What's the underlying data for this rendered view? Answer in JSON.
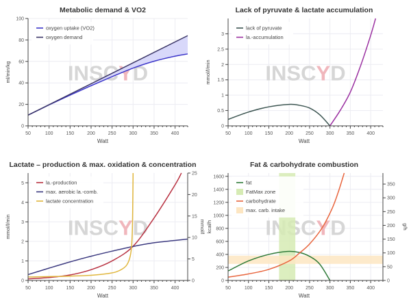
{
  "watermark": {
    "pre": "INSC",
    "y": "Y",
    "post": "D"
  },
  "chart_data": [
    {
      "type": "line",
      "title": "Metabolic demand & VO2",
      "xlabel": "Watt",
      "ylabel": "ml/min/kg",
      "xlim": [
        50,
        430
      ],
      "ylim": [
        0,
        100
      ],
      "xticks": [
        50,
        100,
        150,
        200,
        250,
        300,
        350,
        400
      ],
      "yticks": [
        0,
        20,
        40,
        60,
        80,
        100
      ],
      "legend_position": "top-left",
      "fill_between": {
        "series": [
          0,
          1
        ],
        "color": "#d8d8fa"
      },
      "series": [
        {
          "name": "oxygen uptake (VO2)",
          "color": "#3b35c9",
          "x": [
            50,
            100,
            150,
            200,
            250,
            300,
            350,
            400,
            430
          ],
          "y": [
            10,
            19.5,
            28.6,
            37.4,
            45.8,
            53.8,
            60.2,
            64.9,
            67
          ]
        },
        {
          "name": "oxygen demand",
          "color": "#3a3566",
          "x": [
            50,
            430
          ],
          "y": [
            10,
            84
          ]
        }
      ]
    },
    {
      "type": "line",
      "title": "Lack of pyruvate & lactate accumulation",
      "xlabel": "Watt",
      "ylabel": "mmol/l/min",
      "xlim": [
        50,
        430
      ],
      "ylim": [
        0,
        3.5
      ],
      "xticks": [
        50,
        100,
        150,
        200,
        250,
        300,
        350,
        400
      ],
      "yticks": [
        0,
        0.5,
        1,
        1.5,
        2,
        2.5,
        3
      ],
      "legend_position": "top-left",
      "series": [
        {
          "name": "lack of pyruvate",
          "color": "#3b5450",
          "x": [
            50,
            100,
            150,
            200,
            225,
            250,
            275,
            300
          ],
          "y": [
            0.21,
            0.45,
            0.62,
            0.7,
            0.67,
            0.58,
            0.36,
            0
          ]
        },
        {
          "name": "la.-accumulation",
          "color": "#9a2fa0",
          "x": [
            300,
            325,
            350,
            375,
            400,
            412
          ],
          "y": [
            0,
            0.5,
            1.1,
            1.95,
            2.95,
            3.5
          ]
        }
      ]
    },
    {
      "type": "line",
      "title": "Lactate – production & max. oxidation & concentration",
      "xlabel": "Watt",
      "ylabel": "mmol/l/min",
      "y2label": "mmol/l",
      "xlim": [
        50,
        430
      ],
      "ylim": [
        0,
        5.5
      ],
      "y2lim": [
        0,
        25
      ],
      "xticks": [
        50,
        100,
        150,
        200,
        250,
        300,
        350,
        400
      ],
      "yticks": [
        0,
        1,
        2,
        3,
        4,
        5
      ],
      "y2ticks": [
        0,
        5,
        10,
        15,
        20,
        25
      ],
      "legend_position": "top-left",
      "series": [
        {
          "name": "la.-production",
          "color": "#b83040",
          "x": [
            50,
            100,
            150,
            200,
            250,
            300,
            350,
            400,
            415
          ],
          "y": [
            0.08,
            0.15,
            0.28,
            0.55,
            1.0,
            1.75,
            3.2,
            4.9,
            5.5
          ]
        },
        {
          "name": "max. aerobic la.-comb.",
          "color": "#3c3a80",
          "x": [
            50,
            100,
            150,
            200,
            250,
            300,
            350,
            400,
            430
          ],
          "y": [
            0.3,
            0.63,
            0.95,
            1.24,
            1.5,
            1.74,
            1.93,
            2.05,
            2.12
          ]
        },
        {
          "name": "lactate concentration",
          "color": "#e0b63c",
          "axis": "right",
          "x": [
            50,
            100,
            150,
            200,
            240,
            260,
            275,
            285,
            292,
            296,
            298,
            299,
            300
          ],
          "y": [
            0.8,
            0.9,
            1.0,
            1.2,
            1.6,
            2.0,
            2.7,
            3.6,
            5.2,
            7.5,
            11,
            16,
            25
          ]
        }
      ]
    },
    {
      "type": "line",
      "title": "Fat & carbohydrate combustion",
      "xlabel": "Watt",
      "ylabel": "kcal/h",
      "y2label": "g/h",
      "xlim": [
        50,
        430
      ],
      "ylim": [
        0,
        1650
      ],
      "y2lim": [
        0,
        390
      ],
      "xticks": [
        50,
        100,
        150,
        200,
        250,
        300,
        350,
        400
      ],
      "yticks": [
        0,
        200,
        400,
        600,
        800,
        1000,
        1200,
        1400,
        1600
      ],
      "y2ticks": [
        0,
        50,
        100,
        150,
        200,
        250,
        300,
        350
      ],
      "legend_position": "top-left",
      "bands": [
        {
          "name": "FatMax zone",
          "color": "#d6ebb4",
          "orientation": "vertical",
          "from": 175,
          "to": 215
        },
        {
          "name": "max. carb. intake",
          "color": "#fde6c2",
          "orientation": "horizontal",
          "axis": "right",
          "from": 60,
          "to": 90
        }
      ],
      "series": [
        {
          "name": "fat",
          "color": "#2e7a38",
          "x": [
            50,
            100,
            150,
            195,
            225,
            250,
            275,
            300
          ],
          "y": [
            145,
            300,
            400,
            445,
            430,
            370,
            250,
            0
          ]
        },
        {
          "name": "carbohydrate",
          "color": "#e8643c",
          "x": [
            50,
            100,
            150,
            200,
            225,
            250,
            280,
            305,
            320,
            335
          ],
          "y": [
            50,
            100,
            170,
            300,
            420,
            560,
            800,
            1100,
            1350,
            1650
          ]
        }
      ],
      "legend_order": [
        "fat",
        "FatMax zone",
        "carbohydrate",
        "max. carb. intake"
      ]
    }
  ]
}
